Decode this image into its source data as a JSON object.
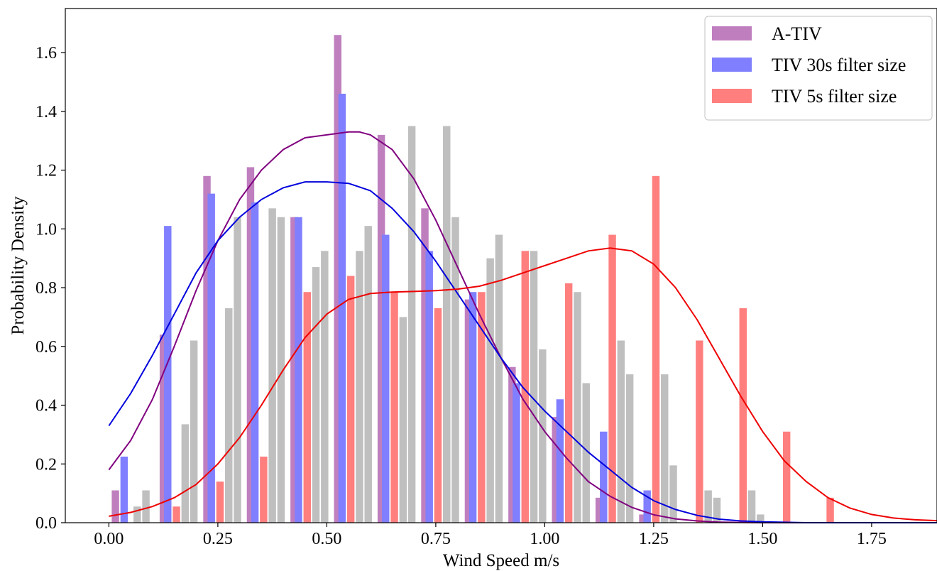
{
  "chart_data": {
    "type": "bar",
    "title": "",
    "xlabel": "Wind Speed m/s",
    "ylabel": "Probability Density",
    "xlim": [
      -0.1,
      1.9
    ],
    "ylim": [
      0,
      1.75
    ],
    "xticks": [
      "0.00",
      "0.25",
      "0.50",
      "0.75",
      "1.00",
      "1.25",
      "1.50",
      "1.75"
    ],
    "yticks": [
      "0.0",
      "0.2",
      "0.4",
      "0.6",
      "0.8",
      "1.0",
      "1.2",
      "1.4",
      "1.6"
    ],
    "legend_position": "top-right",
    "bar_series": [
      {
        "name": "A-TIV",
        "color": "#bf7fbf",
        "width": 0.017,
        "bars": [
          [
            0.015,
            0.11
          ],
          [
            0.125,
            0.64
          ],
          [
            0.225,
            1.18
          ],
          [
            0.325,
            1.21
          ],
          [
            0.425,
            1.04
          ],
          [
            0.525,
            1.66
          ],
          [
            0.625,
            1.32
          ],
          [
            0.725,
            1.07
          ],
          [
            0.825,
            0.76
          ],
          [
            0.925,
            0.53
          ],
          [
            1.025,
            0.36
          ],
          [
            1.125,
            0.085
          ],
          [
            1.225,
            0.028
          ]
        ]
      },
      {
        "name": "TIV 30s filter size",
        "color": "#7f7fff",
        "width": 0.017,
        "bars": [
          [
            0.035,
            0.225
          ],
          [
            0.135,
            1.01
          ],
          [
            0.235,
            1.12
          ],
          [
            0.335,
            1.09
          ],
          [
            0.435,
            1.04
          ],
          [
            0.535,
            1.46
          ],
          [
            0.635,
            0.98
          ],
          [
            0.735,
            0.925
          ],
          [
            0.835,
            0.785
          ],
          [
            0.935,
            0.475
          ],
          [
            1.035,
            0.42
          ],
          [
            1.135,
            0.31
          ],
          [
            1.235,
            0.11
          ]
        ]
      },
      {
        "name": "TIV 5s filter size",
        "color": "#ff7f7f",
        "width": 0.017,
        "bars": [
          [
            0.155,
            0.055
          ],
          [
            0.255,
            0.14
          ],
          [
            0.355,
            0.225
          ],
          [
            0.455,
            0.785
          ],
          [
            0.555,
            0.84
          ],
          [
            0.655,
            0.785
          ],
          [
            0.755,
            0.73
          ],
          [
            0.855,
            0.785
          ],
          [
            0.955,
            0.925
          ],
          [
            1.055,
            0.815
          ],
          [
            1.155,
            0.98
          ],
          [
            1.255,
            1.18
          ],
          [
            1.355,
            0.62
          ],
          [
            1.455,
            0.73
          ],
          [
            1.555,
            0.31
          ],
          [
            1.655,
            0.085
          ]
        ]
      },
      {
        "name": "",
        "color": "#bfbfbf",
        "width": 0.017,
        "bars": [
          [
            0.065,
            0.055
          ],
          [
            0.085,
            0.11
          ],
          [
            0.175,
            0.335
          ],
          [
            0.195,
            0.62
          ],
          [
            0.275,
            0.73
          ],
          [
            0.295,
            1.04
          ],
          [
            0.375,
            1.07
          ],
          [
            0.395,
            1.04
          ],
          [
            0.475,
            0.87
          ],
          [
            0.495,
            0.925
          ],
          [
            0.575,
            0.925
          ],
          [
            0.595,
            1.01
          ],
          [
            0.675,
            0.7
          ],
          [
            0.695,
            1.35
          ],
          [
            0.775,
            1.35
          ],
          [
            0.795,
            1.04
          ],
          [
            0.875,
            0.9
          ],
          [
            0.895,
            0.98
          ],
          [
            0.975,
            0.925
          ],
          [
            0.995,
            0.59
          ],
          [
            1.075,
            0.785
          ],
          [
            1.095,
            0.475
          ],
          [
            1.175,
            0.62
          ],
          [
            1.195,
            0.505
          ],
          [
            1.275,
            0.505
          ],
          [
            1.295,
            0.195
          ],
          [
            1.375,
            0.11
          ],
          [
            1.395,
            0.085
          ],
          [
            1.475,
            0.11
          ],
          [
            1.495,
            0.028
          ]
        ]
      }
    ],
    "curves": [
      {
        "name": "",
        "color": "#800080",
        "points": [
          [
            0.0,
            0.18
          ],
          [
            0.05,
            0.28
          ],
          [
            0.1,
            0.42
          ],
          [
            0.15,
            0.6
          ],
          [
            0.2,
            0.79
          ],
          [
            0.25,
            0.96
          ],
          [
            0.3,
            1.1
          ],
          [
            0.35,
            1.2
          ],
          [
            0.4,
            1.27
          ],
          [
            0.45,
            1.31
          ],
          [
            0.5,
            1.32
          ],
          [
            0.55,
            1.33
          ],
          [
            0.575,
            1.33
          ],
          [
            0.6,
            1.32
          ],
          [
            0.65,
            1.27
          ],
          [
            0.7,
            1.17
          ],
          [
            0.75,
            1.03
          ],
          [
            0.8,
            0.87
          ],
          [
            0.85,
            0.71
          ],
          [
            0.9,
            0.56
          ],
          [
            0.95,
            0.42
          ],
          [
            1.0,
            0.31
          ],
          [
            1.05,
            0.22
          ],
          [
            1.1,
            0.14
          ],
          [
            1.15,
            0.09
          ],
          [
            1.2,
            0.052
          ],
          [
            1.25,
            0.027
          ],
          [
            1.3,
            0.013
          ],
          [
            1.35,
            0.006
          ],
          [
            1.4,
            0.002
          ],
          [
            1.5,
            0.0
          ],
          [
            1.9,
            0.0
          ]
        ]
      },
      {
        "name": "",
        "color": "#0000dd",
        "points": [
          [
            0.0,
            0.33
          ],
          [
            0.05,
            0.44
          ],
          [
            0.1,
            0.57
          ],
          [
            0.15,
            0.71
          ],
          [
            0.2,
            0.85
          ],
          [
            0.25,
            0.96
          ],
          [
            0.3,
            1.04
          ],
          [
            0.35,
            1.1
          ],
          [
            0.4,
            1.14
          ],
          [
            0.45,
            1.16
          ],
          [
            0.5,
            1.16
          ],
          [
            0.55,
            1.155
          ],
          [
            0.6,
            1.13
          ],
          [
            0.65,
            1.07
          ],
          [
            0.7,
            0.99
          ],
          [
            0.75,
            0.89
          ],
          [
            0.8,
            0.78
          ],
          [
            0.85,
            0.67
          ],
          [
            0.9,
            0.56
          ],
          [
            0.95,
            0.46
          ],
          [
            1.0,
            0.38
          ],
          [
            1.05,
            0.31
          ],
          [
            1.1,
            0.24
          ],
          [
            1.15,
            0.18
          ],
          [
            1.2,
            0.12
          ],
          [
            1.25,
            0.075
          ],
          [
            1.3,
            0.045
          ],
          [
            1.35,
            0.025
          ],
          [
            1.4,
            0.012
          ],
          [
            1.45,
            0.006
          ],
          [
            1.5,
            0.003
          ],
          [
            1.6,
            0.0
          ],
          [
            1.9,
            0.0
          ]
        ]
      },
      {
        "name": "",
        "color": "#ee0000",
        "points": [
          [
            0.0,
            0.022
          ],
          [
            0.05,
            0.035
          ],
          [
            0.1,
            0.055
          ],
          [
            0.15,
            0.085
          ],
          [
            0.2,
            0.13
          ],
          [
            0.25,
            0.2
          ],
          [
            0.3,
            0.29
          ],
          [
            0.35,
            0.4
          ],
          [
            0.4,
            0.52
          ],
          [
            0.45,
            0.63
          ],
          [
            0.5,
            0.71
          ],
          [
            0.55,
            0.76
          ],
          [
            0.6,
            0.78
          ],
          [
            0.65,
            0.785
          ],
          [
            0.7,
            0.787
          ],
          [
            0.75,
            0.79
          ],
          [
            0.8,
            0.795
          ],
          [
            0.85,
            0.805
          ],
          [
            0.9,
            0.825
          ],
          [
            0.95,
            0.85
          ],
          [
            1.0,
            0.875
          ],
          [
            1.05,
            0.9
          ],
          [
            1.1,
            0.925
          ],
          [
            1.15,
            0.935
          ],
          [
            1.2,
            0.925
          ],
          [
            1.25,
            0.88
          ],
          [
            1.3,
            0.8
          ],
          [
            1.35,
            0.69
          ],
          [
            1.4,
            0.56
          ],
          [
            1.45,
            0.43
          ],
          [
            1.5,
            0.31
          ],
          [
            1.55,
            0.21
          ],
          [
            1.6,
            0.14
          ],
          [
            1.65,
            0.085
          ],
          [
            1.7,
            0.05
          ],
          [
            1.75,
            0.028
          ],
          [
            1.8,
            0.016
          ],
          [
            1.85,
            0.01
          ],
          [
            1.9,
            0.007
          ]
        ]
      }
    ]
  }
}
